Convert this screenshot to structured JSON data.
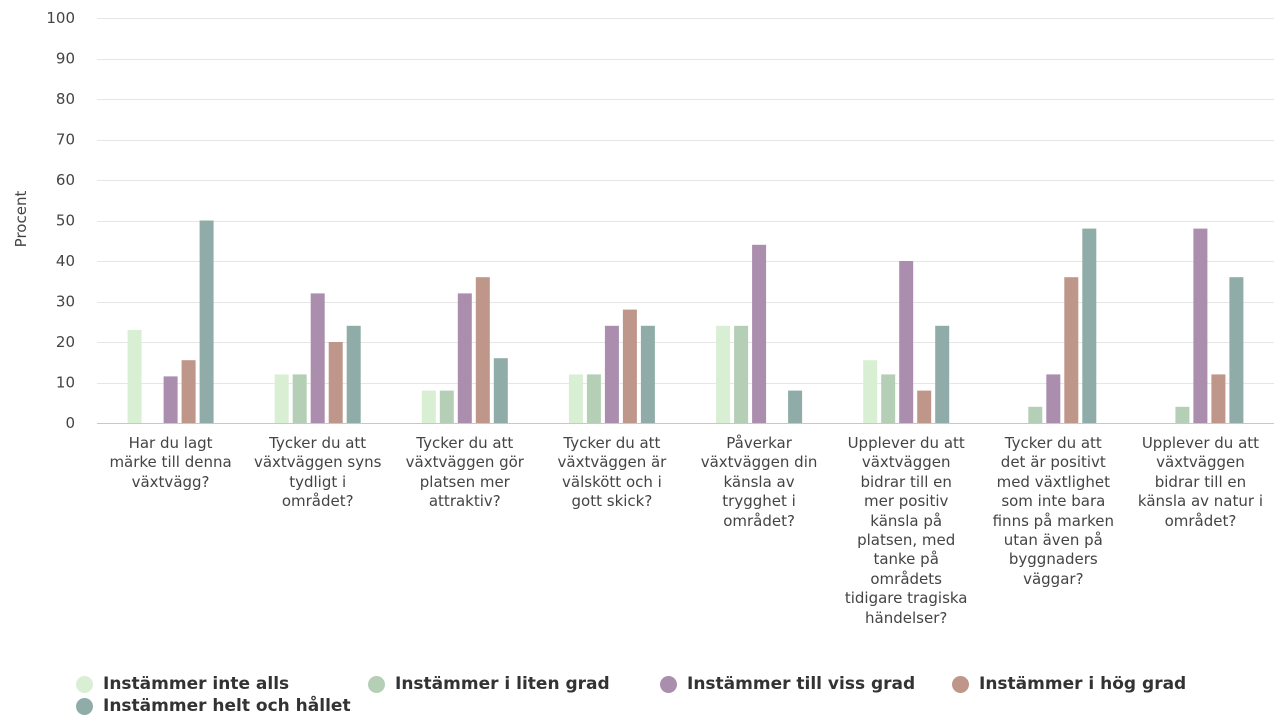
{
  "chart_data": {
    "type": "bar",
    "ylabel": "Procent",
    "ylim": [
      0,
      100
    ],
    "yticks": [
      0,
      10,
      20,
      30,
      40,
      50,
      60,
      70,
      80,
      90,
      100
    ],
    "grid": true,
    "legend_position": "bottom-left",
    "categories": [
      "Har du lagt märke till denna växtvägg?",
      "Tycker du att växtväggen syns tydligt i området?",
      "Tycker du att växtväggen gör platsen mer attraktiv?",
      "Tycker du att växtväggen är välskött och i gott skick?",
      "Påverkar växtväggen din känsla av trygghet i området?",
      "Upplever du att växtväggen bidrar till en mer positiv känsla på platsen, med tanke på områdets tidigare tragiska händelser?",
      "Tycker du att det är positivt med växtlighet som inte bara finns på marken utan även på byggnaders väggar?",
      "Upplever du att växtväggen bidrar till en känsla av natur i området?"
    ],
    "category_lines": [
      [
        "Har du lagt",
        "märke till denna",
        "växtvägg?"
      ],
      [
        "Tycker du att",
        "växtväggen syns",
        "tydligt i",
        "området?"
      ],
      [
        "Tycker du att",
        "växtväggen gör",
        "platsen mer",
        "attraktiv?"
      ],
      [
        "Tycker du att",
        "växtväggen är",
        "välskött och i",
        "gott skick?"
      ],
      [
        "Påverkar",
        "växtväggen din",
        "känsla av",
        "trygghet i",
        "området?"
      ],
      [
        "Upplever du att",
        "växtväggen",
        "bidrar till en",
        "mer positiv",
        "känsla på",
        "platsen, med",
        "tanke på",
        "områdets",
        "tidigare tragiska",
        "händelser?"
      ],
      [
        "Tycker du att",
        "det är positivt",
        "med växtlighet",
        "som inte bara",
        "finns på marken",
        "utan även på",
        "byggnaders",
        "väggar?"
      ],
      [
        "Upplever du att",
        "växtväggen",
        "bidrar till en",
        "känsla av natur i",
        "området?"
      ]
    ],
    "series": [
      {
        "name": "Instämmer inte alls",
        "color": "#d9efd4",
        "values": [
          23,
          12,
          8,
          12,
          24,
          15.5,
          0,
          0
        ]
      },
      {
        "name": "Instämmer i liten grad",
        "color": "#b5cfb6",
        "values": [
          0,
          12,
          8,
          12,
          24,
          12,
          4,
          4
        ]
      },
      {
        "name": "Instämmer till viss grad",
        "color": "#ab8eae",
        "values": [
          11.5,
          32,
          32,
          24,
          44,
          40,
          12,
          48
        ]
      },
      {
        "name": "Instämmer i hög grad",
        "color": "#bf968a",
        "values": [
          15.5,
          20,
          36,
          28,
          0,
          8,
          36,
          12
        ]
      },
      {
        "name": "Instämmer helt och hållet",
        "color": "#90aca8",
        "values": [
          50,
          24,
          16,
          24,
          8,
          24,
          48,
          36
        ]
      }
    ]
  }
}
